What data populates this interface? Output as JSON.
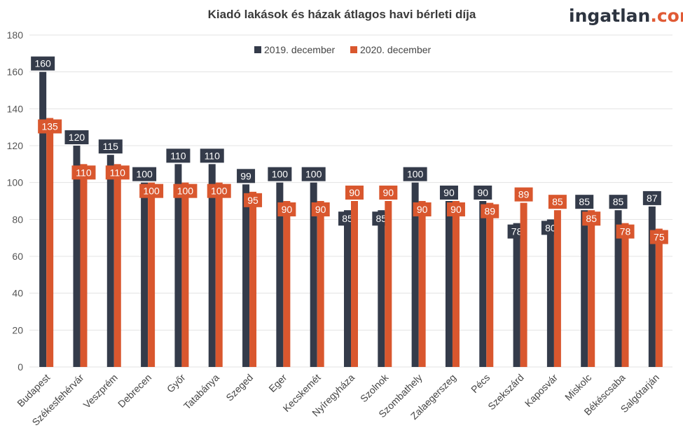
{
  "chart_data": {
    "type": "bar",
    "title": "Kiadó lakások és házak átlagos havi bérleti díja",
    "brand": {
      "name": "ingatlan",
      "suffix": ".com"
    },
    "xlabel": "",
    "ylabel": "",
    "ylim": [
      0,
      180
    ],
    "yticks": [
      0,
      20,
      40,
      60,
      80,
      100,
      120,
      140,
      160,
      180
    ],
    "grid": true,
    "legend_position": "top-center",
    "categories": [
      "Budapest",
      "Székesfehérvár",
      "Veszprém",
      "Debrecen",
      "Győr",
      "Tatabánya",
      "Szeged",
      "Eger",
      "Kecskemét",
      "Nyíregyháza",
      "Szolnok",
      "Szombathely",
      "Zalaegerszeg",
      "Pécs",
      "Szekszárd",
      "Kaposvár",
      "Miskolc",
      "Békéscsaba",
      "Salgótarján"
    ],
    "series": [
      {
        "name": "2019. december",
        "color": "#343b4a",
        "values": [
          160,
          120,
          115,
          100,
          110,
          110,
          99,
          100,
          100,
          85,
          85,
          100,
          90,
          90,
          78,
          80,
          85,
          85,
          87
        ]
      },
      {
        "name": "2020. december",
        "color": "#d9572e",
        "values": [
          135,
          110,
          110,
          100,
          100,
          100,
          95,
          90,
          90,
          90,
          90,
          90,
          90,
          89,
          89,
          85,
          85,
          78,
          75
        ]
      }
    ]
  }
}
